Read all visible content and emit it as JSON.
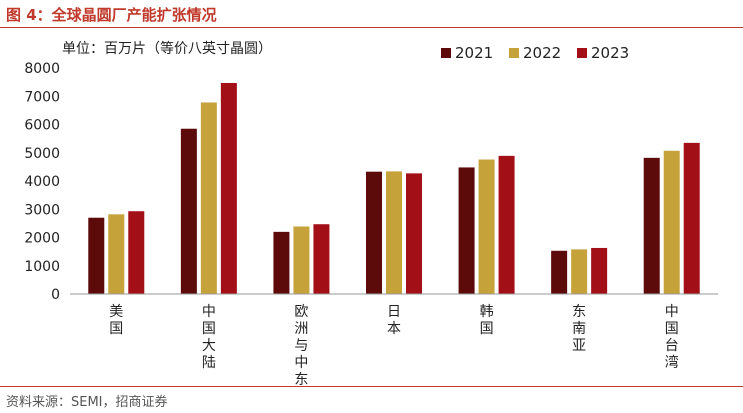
{
  "figure": {
    "title": "图 4：全球晶圆厂产能扩张情况",
    "source": "资料来源：SEMI，招商证券"
  },
  "colors": {
    "accent": "#c0392b",
    "series": [
      "#5c0a0a",
      "#c6a23a",
      "#a30f17"
    ]
  },
  "chart_data": {
    "type": "bar",
    "title": "",
    "unit_label": "单位：百万片（等价八英寸晶圆）",
    "xlabel": "",
    "ylabel": "",
    "ylim": [
      0,
      8000
    ],
    "yticks": [
      0,
      1000,
      2000,
      3000,
      4000,
      5000,
      6000,
      7000,
      8000
    ],
    "grid": false,
    "legend_position": "top-right",
    "categories": [
      "美国",
      "中国大陆",
      "欧洲与中东",
      "日本",
      "韩国",
      "东南亚",
      "中国台湾"
    ],
    "series": [
      {
        "name": "2021",
        "values": [
          2700,
          5850,
          2200,
          4330,
          4480,
          1530,
          4820
        ]
      },
      {
        "name": "2022",
        "values": [
          2820,
          6780,
          2390,
          4340,
          4760,
          1580,
          5070
        ]
      },
      {
        "name": "2023",
        "values": [
          2930,
          7470,
          2470,
          4270,
          4890,
          1630,
          5350
        ]
      }
    ]
  }
}
